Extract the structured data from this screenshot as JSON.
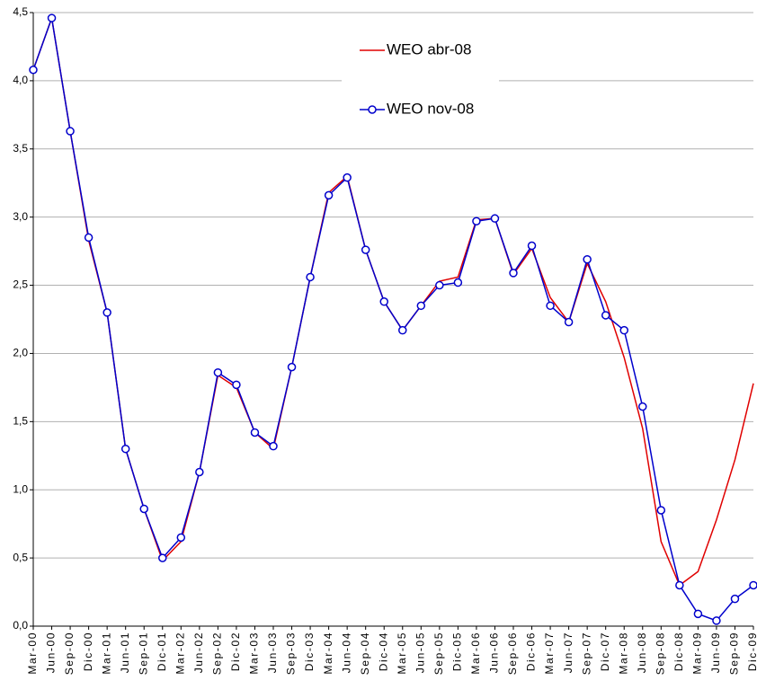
{
  "chart_data": {
    "type": "line",
    "categories": [
      "Mar-00",
      "Jun-00",
      "Sep-00",
      "Dic-00",
      "Mar-01",
      "Jun-01",
      "Sep-01",
      "Dic-01",
      "Mar-02",
      "Jun-02",
      "Sep-02",
      "Dic-02",
      "Mar-03",
      "Jun-03",
      "Sep-03",
      "Dic-03",
      "Mar-04",
      "Jun-04",
      "Sep-04",
      "Dic-04",
      "Mar-05",
      "Jun-05",
      "Sep-05",
      "Dic-05",
      "Mar-06",
      "Jun-06",
      "Sep-06",
      "Dic-06",
      "Mar-07",
      "Jun-07",
      "Sep-07",
      "Dic-07",
      "Mar-08",
      "Jun-08",
      "Sep-08",
      "Dic-08",
      "Mar-09",
      "Jun-09",
      "Sep-09",
      "Dic-09"
    ],
    "series": [
      {
        "name": "WEO abr-08",
        "color": "#e00000",
        "marker": false,
        "values": [
          4.08,
          4.46,
          3.63,
          2.83,
          2.3,
          1.3,
          0.86,
          0.48,
          0.62,
          1.13,
          1.84,
          1.75,
          1.42,
          1.3,
          1.9,
          2.56,
          3.18,
          3.3,
          2.76,
          2.38,
          2.17,
          2.35,
          2.53,
          2.56,
          2.98,
          2.99,
          2.58,
          2.77,
          2.41,
          2.23,
          2.66,
          2.38,
          1.97,
          1.45,
          0.62,
          0.3,
          0.4,
          0.78,
          1.22,
          1.78
        ]
      },
      {
        "name": "WEO nov-08",
        "color": "#0000cc",
        "marker": true,
        "values": [
          4.08,
          4.46,
          3.63,
          2.85,
          2.3,
          1.3,
          0.86,
          0.5,
          0.65,
          1.13,
          1.86,
          1.77,
          1.42,
          1.32,
          1.9,
          2.56,
          3.16,
          3.29,
          2.76,
          2.38,
          2.17,
          2.35,
          2.5,
          2.52,
          2.97,
          2.99,
          2.59,
          2.79,
          2.35,
          2.23,
          2.69,
          2.28,
          2.17,
          1.61,
          0.85,
          0.3,
          0.09,
          0.04,
          0.2,
          0.3
        ]
      }
    ],
    "ylim": [
      0,
      4.5
    ],
    "yticks": [
      {
        "value": 0,
        "label": "0,0"
      },
      {
        "value": 0.5,
        "label": "0,5"
      },
      {
        "value": 1,
        "label": "1,0"
      },
      {
        "value": 1.5,
        "label": "1,5"
      },
      {
        "value": 2,
        "label": "2,0"
      },
      {
        "value": 2.5,
        "label": "2,5"
      },
      {
        "value": 3,
        "label": "3,0"
      },
      {
        "value": 3.5,
        "label": "3,5"
      },
      {
        "value": 4,
        "label": "4,0"
      },
      {
        "value": 4.5,
        "label": "4,5"
      }
    ],
    "grid": true,
    "legend": "upper center"
  }
}
